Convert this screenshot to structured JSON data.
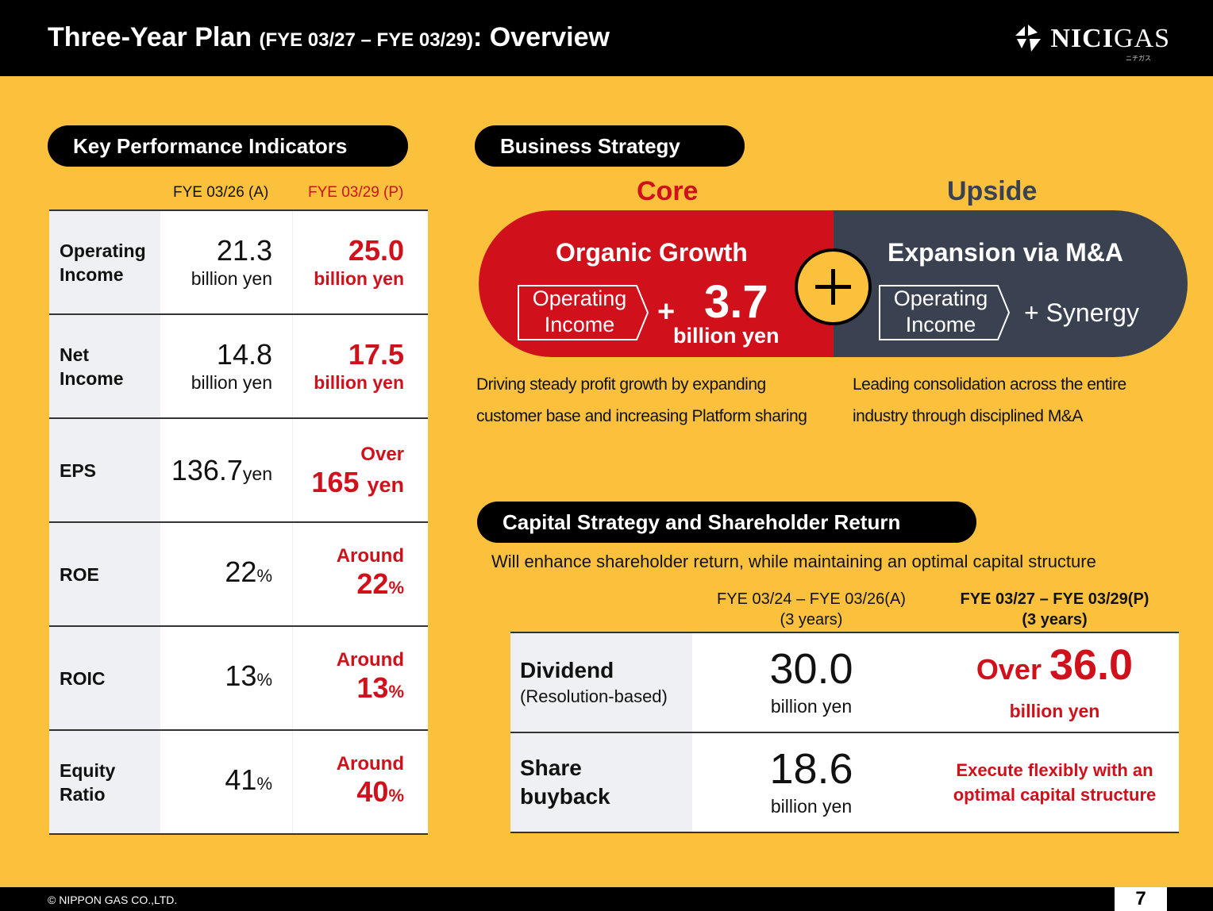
{
  "header": {
    "title_main": "Three-Year Plan ",
    "title_paren": "(FYE 03/27 – FYE 03/29)",
    "title_end": ": Overview",
    "logo_bold": "NICI",
    "logo_rest": "GAS",
    "logo_sub": "ニチガス"
  },
  "kpi": {
    "heading": "Key Performance Indicators",
    "col_actual": "FYE 03/26 (A)",
    "col_plan": "FYE 03/29 (P)",
    "rows": [
      {
        "label": "Operating Income",
        "actual": "21.3",
        "actual_unit": "billion yen",
        "plan_prefix": "",
        "plan": "25.0",
        "plan_unit": "billion yen"
      },
      {
        "label": "Net Income",
        "actual": "14.8",
        "actual_unit": "billion yen",
        "plan_prefix": "",
        "plan": "17.5",
        "plan_unit": "billion yen"
      },
      {
        "label": "EPS",
        "actual": "136.7",
        "actual_unit": "yen",
        "plan_prefix": "Over",
        "plan": "165",
        "plan_unit": "yen"
      },
      {
        "label": "ROE",
        "actual": "22",
        "actual_unit": "%",
        "plan_prefix": "Around",
        "plan": "22",
        "plan_unit": "%"
      },
      {
        "label": "ROIC",
        "actual": "13",
        "actual_unit": "%",
        "plan_prefix": "Around",
        "plan": "13",
        "plan_unit": "%"
      },
      {
        "label": "Equity Ratio",
        "actual": "41",
        "actual_unit": "%",
        "plan_prefix": "Around",
        "plan": "40",
        "plan_unit": "%"
      }
    ]
  },
  "business": {
    "heading": "Business Strategy",
    "core_label": "Core",
    "upside_label": "Upside",
    "core_title": "Organic Growth",
    "core_tag": "Operating Income",
    "core_plus": "+",
    "core_value": "3.7",
    "core_unit": "billion yen",
    "upside_title": "Expansion via M&A",
    "upside_tag": "Operating Income",
    "upside_value": "+ Synergy",
    "core_desc_1": "Driving steady profit growth by expanding",
    "core_desc_2": "customer base and increasing Platform sharing",
    "upside_desc_1": "Leading consolidation across the entire",
    "upside_desc_2": "industry through disciplined M&A"
  },
  "capital": {
    "heading": "Capital Strategy and Shareholder Return",
    "subtitle": "Will enhance shareholder return, while maintaining an optimal capital structure",
    "col_actual_1": "FYE 03/24 – FYE 03/26(A)",
    "col_actual_2": "(3 years)",
    "col_plan_1": "FYE 03/27 – FYE 03/29(P)",
    "col_plan_2": "(3 years)",
    "dividend_label": "Dividend",
    "dividend_sub": "(Resolution-based)",
    "dividend_actual": "30.0",
    "dividend_actual_unit": "billion yen",
    "dividend_plan_prefix": "Over ",
    "dividend_plan": "36.0",
    "dividend_plan_unit": "billion yen",
    "buyback_label_1": "Share",
    "buyback_label_2": "buyback",
    "buyback_actual": "18.6",
    "buyback_actual_unit": "billion yen",
    "buyback_plan_1": "Execute flexibly with an",
    "buyback_plan_2": "optimal capital structure"
  },
  "footer": {
    "copyright": "© NIPPON GAS CO.,LTD.",
    "page": "7"
  },
  "colors": {
    "background": "#FBC13C",
    "accent_red": "#D0101A",
    "upside_navy": "#3A4251",
    "label_gray": "#EEF0F3"
  }
}
